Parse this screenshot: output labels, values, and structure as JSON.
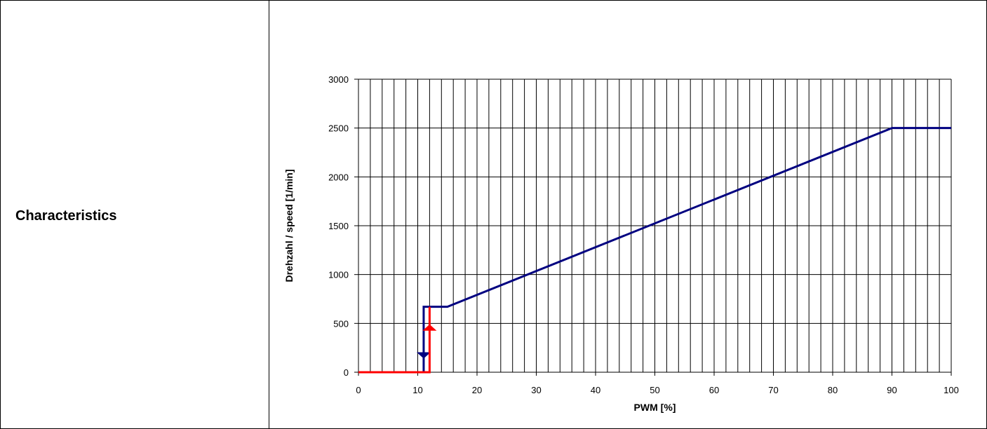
{
  "row_label": "Characteristics",
  "chart_data": {
    "type": "line",
    "xlabel": "PWM [%]",
    "ylabel": "Drehzahl / speed [1/min]",
    "xlim": [
      0,
      100
    ],
    "ylim": [
      0,
      3000
    ],
    "x_ticks": [
      0,
      10,
      20,
      30,
      40,
      50,
      60,
      70,
      80,
      90,
      100
    ],
    "y_ticks": [
      0,
      500,
      1000,
      1500,
      2000,
      2500,
      3000
    ],
    "x_grid_step": 2,
    "y_grid_step": 500,
    "grid": true,
    "series": [
      {
        "color": "#000080",
        "x": [
          11,
          11,
          15,
          90,
          100
        ],
        "y": [
          0,
          670,
          670,
          2500,
          2500
        ],
        "arrow": {
          "x": 11,
          "from": 500,
          "to": 140,
          "direction": "down"
        }
      },
      {
        "color": "#ff0000",
        "x": [
          0,
          12,
          12
        ],
        "y": [
          0,
          0,
          670
        ],
        "arrow": {
          "x": 12,
          "from": 170,
          "to": 490,
          "direction": "up"
        }
      }
    ]
  }
}
